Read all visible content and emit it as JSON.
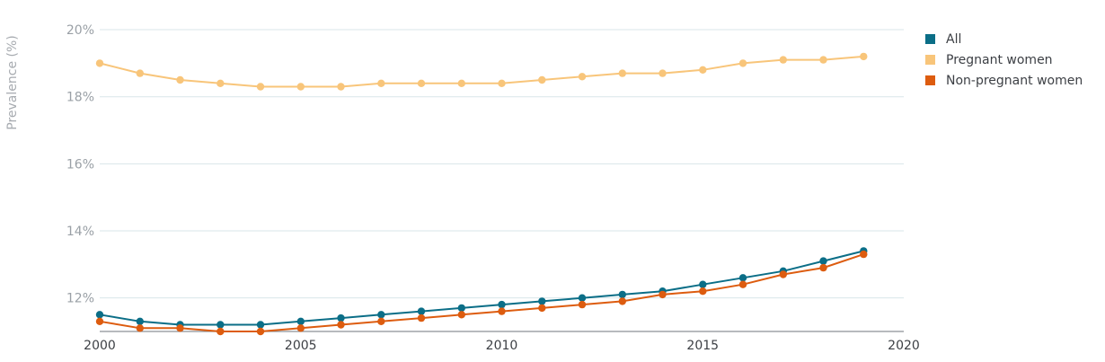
{
  "chart_data": {
    "type": "line",
    "ylabel": "Prevalence (%)",
    "xlim": [
      2000,
      2020
    ],
    "ylim": [
      11,
      20
    ],
    "x_ticks": [
      2000,
      2005,
      2010,
      2015,
      2020
    ],
    "y_ticks": [
      12,
      14,
      16,
      18,
      20
    ],
    "y_tick_labels": [
      "12%",
      "14%",
      "16%",
      "18%",
      "20%"
    ],
    "x_tick_labels": [
      "2000",
      "2005",
      "2010",
      "2015",
      "2020"
    ],
    "grid": "horizontal",
    "legend_position": "top-right",
    "x": [
      2000,
      2001,
      2002,
      2003,
      2004,
      2005,
      2006,
      2007,
      2008,
      2009,
      2010,
      2011,
      2012,
      2013,
      2014,
      2015,
      2016,
      2017,
      2018,
      2019
    ],
    "series": [
      {
        "name": "All",
        "color": "#0b6e87",
        "values": [
          11.5,
          11.3,
          11.2,
          11.2,
          11.2,
          11.3,
          11.4,
          11.5,
          11.6,
          11.7,
          11.8,
          11.9,
          12.0,
          12.1,
          12.2,
          12.4,
          12.6,
          12.8,
          13.1,
          13.4
        ]
      },
      {
        "name": "Pregnant women",
        "color": "#f8c57a",
        "values": [
          19.0,
          18.7,
          18.5,
          18.4,
          18.3,
          18.3,
          18.3,
          18.4,
          18.4,
          18.4,
          18.4,
          18.5,
          18.6,
          18.7,
          18.7,
          18.8,
          19.0,
          19.1,
          19.1,
          19.2
        ]
      },
      {
        "name": "Non-pregnant women",
        "color": "#dd5c0f",
        "values": [
          11.3,
          11.1,
          11.1,
          11.0,
          11.0,
          11.1,
          11.2,
          11.3,
          11.4,
          11.5,
          11.6,
          11.7,
          11.8,
          11.9,
          12.1,
          12.2,
          12.4,
          12.7,
          12.9,
          13.3
        ]
      }
    ]
  }
}
